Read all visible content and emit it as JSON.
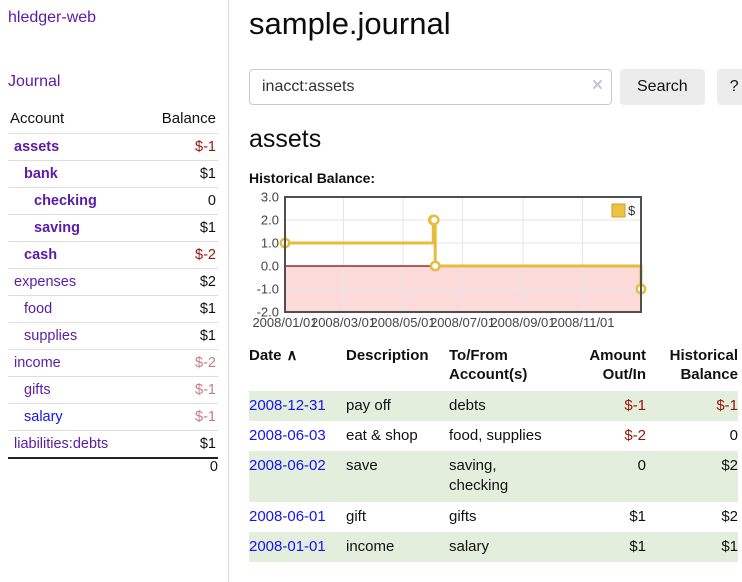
{
  "app": {
    "brand": "hledger-web",
    "nav_journal": "Journal"
  },
  "sidebar": {
    "header": {
      "account": "Account",
      "balance": "Balance"
    },
    "accounts": [
      {
        "name": "assets",
        "level": 0,
        "bold": true,
        "balance": "$-1",
        "balance_class": "bal-neg-strong",
        "link": "purple"
      },
      {
        "name": "bank",
        "level": 1,
        "bold": true,
        "balance": "$1",
        "balance_class": "",
        "link": "purple"
      },
      {
        "name": "checking",
        "level": 2,
        "bold": true,
        "balance": "0",
        "balance_class": "",
        "link": "purple"
      },
      {
        "name": "saving",
        "level": 2,
        "bold": true,
        "balance": "$1",
        "balance_class": "",
        "link": "purple"
      },
      {
        "name": "cash",
        "level": 1,
        "bold": true,
        "balance": "$-2",
        "balance_class": "bal-neg-strong",
        "link": "purple"
      },
      {
        "name": "expenses",
        "level": 0,
        "bold": false,
        "balance": "$2",
        "balance_class": "",
        "link": "purple"
      },
      {
        "name": "food",
        "level": 1,
        "bold": false,
        "balance": "$1",
        "balance_class": "",
        "link": "purple"
      },
      {
        "name": "supplies",
        "level": 1,
        "bold": false,
        "balance": "$1",
        "balance_class": "",
        "link": "purple"
      },
      {
        "name": "income",
        "level": 0,
        "bold": false,
        "balance": "$-2",
        "balance_class": "bal-neg-soft",
        "link": "purple"
      },
      {
        "name": "gifts",
        "level": 1,
        "bold": false,
        "balance": "$-1",
        "balance_class": "bal-neg-soft",
        "link": "purple"
      },
      {
        "name": "salary",
        "level": 1,
        "bold": false,
        "balance": "$-1",
        "balance_class": "bal-neg-soft",
        "link": "blue"
      },
      {
        "name": "liabilities:debts",
        "level": 0,
        "bold": false,
        "balance": "$1",
        "balance_class": "",
        "link": "purple"
      }
    ],
    "total": "0"
  },
  "header": {
    "title": "sample.journal"
  },
  "search": {
    "query": "inacct:assets",
    "clear_icon": "×",
    "search_label": "Search",
    "help_label": "?"
  },
  "account_page": {
    "title": "assets",
    "chart_label": "Historical Balance:"
  },
  "chart_data": {
    "type": "line",
    "step": true,
    "title": "Historical Balance:",
    "series": [
      {
        "name": "$",
        "color": "#e6bc3e",
        "fill_color": "#edc240",
        "dates": [
          "2008-01-01",
          "2008-06-01",
          "2008-06-02",
          "2008-06-03",
          "2008-12-31"
        ],
        "day_offsets": [
          0,
          152,
          153,
          154,
          365
        ],
        "values": [
          1,
          2,
          2,
          0,
          -1
        ]
      }
    ],
    "x_ticks": [
      {
        "label": "2008/01/01",
        "day": 0
      },
      {
        "label": "2008/03/01",
        "day": 60
      },
      {
        "label": "2008/05/01",
        "day": 121
      },
      {
        "label": "2008/07/01",
        "day": 182
      },
      {
        "label": "2008/09/01",
        "day": 244
      },
      {
        "label": "2008/11/01",
        "day": 305
      }
    ],
    "y_ticks": [
      3.0,
      2.0,
      1.0,
      0.0,
      -1.0,
      -2.0
    ],
    "ylim": [
      -2,
      3
    ],
    "xlim_days": [
      0,
      365
    ],
    "grid": true,
    "legend_position": "top-right",
    "negative_region_color": "#fcdada",
    "zero_line_color": "#8b0000",
    "grid_color": "#e6e6e6",
    "border_color": "#4f4f4f",
    "tick_label_color": "#444444"
  },
  "register": {
    "columns": [
      {
        "label": "Date",
        "sorted": "asc"
      },
      {
        "label": "Description"
      },
      {
        "label": "To/From Account(s)"
      },
      {
        "label": "Amount Out/In"
      },
      {
        "label": "Historical Balance"
      }
    ],
    "sort_icon": "∧",
    "rows": [
      {
        "date": "2008-12-31",
        "description": "pay off",
        "accounts": "debts",
        "amount": "$-1",
        "amount_negative": true,
        "balance": "$-1",
        "balance_negative": true
      },
      {
        "date": "2008-06-03",
        "description": "eat & shop",
        "accounts": "food, supplies",
        "amount": "$-2",
        "amount_negative": true,
        "balance": "0",
        "balance_negative": false
      },
      {
        "date": "2008-06-02",
        "description": "save",
        "accounts": "saving, checking",
        "amount": "0",
        "amount_negative": false,
        "balance": "$2",
        "balance_negative": false
      },
      {
        "date": "2008-06-01",
        "description": "gift",
        "accounts": "gifts",
        "amount": "$1",
        "amount_negative": false,
        "balance": "$2",
        "balance_negative": false
      },
      {
        "date": "2008-01-01",
        "description": "income",
        "accounts": "salary",
        "amount": "$1",
        "amount_negative": false,
        "balance": "$1",
        "balance_negative": false
      }
    ]
  },
  "colors": {
    "link_purple": "#5a1ca8",
    "link_blue": "#1414ee",
    "negative_strong": "#941408",
    "negative_soft": "#c17f7f",
    "row_stripe_green": "#e3eedd",
    "series_yellow": "#edc240"
  }
}
